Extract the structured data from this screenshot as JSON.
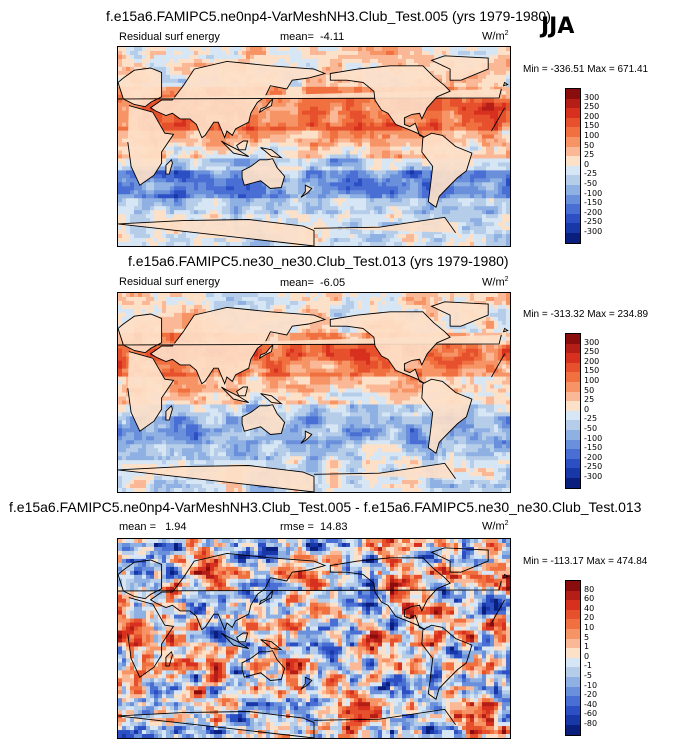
{
  "season": "JJA",
  "panels": [
    {
      "title": "f.e15a6.FAMIPC5.ne0np4-VarMeshNH3.Club_Test.005 (yrs 1979-1980)",
      "variable": "Residual surf energy",
      "stat_label": "mean=",
      "stat_value": "-4.11",
      "units": "W/m",
      "units_sup": "2",
      "minmax": "Min = -336.51 Max = 671.41"
    },
    {
      "title": "f.e15a6.FAMIPC5.ne30_ne30.Club_Test.013 (yrs 1979-1980)",
      "variable": "Residual surf energy",
      "stat_label": "mean=",
      "stat_value": "-6.05",
      "units": "W/m",
      "units_sup": "2",
      "minmax": "Min = -313.32 Max = 234.89"
    },
    {
      "title": "f.e15a6.FAMIPC5.ne0np4-VarMeshNH3.Club_Test.005 - f.e15a6.FAMIPC5.ne30_ne30.Club_Test.013",
      "variable": "",
      "stat_label": "mean =",
      "stat_value": "1.94",
      "stat2_label": "rmse =",
      "stat2_value": "14.83",
      "units": "W/m",
      "units_sup": "2",
      "minmax": "Min = -113.17 Max = 474.84"
    }
  ],
  "chart_data": [
    {
      "type": "heatmap",
      "title": "f.e15a6.FAMIPC5.ne0np4-VarMeshNH3.Club_Test.005 (yrs 1979-1980)",
      "variable": "Residual surf energy",
      "units": "W/m2",
      "mean": -4.11,
      "min": -336.51,
      "max": 671.41,
      "colorbar_levels": [
        "300",
        "250",
        "200",
        "150",
        "100",
        "50",
        "25",
        "0",
        "-25",
        "-50",
        "-100",
        "-150",
        "-200",
        "-250",
        "-300"
      ],
      "colors": [
        "#8a0d0d",
        "#b41e17",
        "#d7301f",
        "#e6502c",
        "#f07040",
        "#f79466",
        "#fbb896",
        "#fde0c8",
        "#d6e6f5",
        "#b5cde9",
        "#8fb0e3",
        "#6a90dc",
        "#4a6fd4",
        "#2d4fc4",
        "#1838a8",
        "#0a1e7e"
      ]
    },
    {
      "type": "heatmap",
      "title": "f.e15a6.FAMIPC5.ne30_ne30.Club_Test.013 (yrs 1979-1980)",
      "variable": "Residual surf energy",
      "units": "W/m2",
      "mean": -6.05,
      "min": -313.32,
      "max": 234.89,
      "colorbar_levels": [
        "300",
        "250",
        "200",
        "150",
        "100",
        "50",
        "25",
        "0",
        "-25",
        "-50",
        "-100",
        "-150",
        "-200",
        "-250",
        "-300"
      ],
      "colors": [
        "#8a0d0d",
        "#b41e17",
        "#d7301f",
        "#e6502c",
        "#f07040",
        "#f79466",
        "#fbb896",
        "#fde0c8",
        "#d6e6f5",
        "#b5cde9",
        "#8fb0e3",
        "#6a90dc",
        "#4a6fd4",
        "#2d4fc4",
        "#1838a8",
        "#0a1e7e"
      ]
    },
    {
      "type": "heatmap",
      "title": "f.e15a6.FAMIPC5.ne0np4-VarMeshNH3.Club_Test.005 - f.e15a6.FAMIPC5.ne30_ne30.Club_Test.013",
      "variable": "",
      "units": "W/m2",
      "mean": 1.94,
      "rmse": 14.83,
      "min": -113.17,
      "max": 474.84,
      "colorbar_levels": [
        "80",
        "60",
        "40",
        "20",
        "10",
        "5",
        "1",
        "0",
        "-1",
        "-5",
        "-10",
        "-20",
        "-40",
        "-60",
        "-80"
      ],
      "colors": [
        "#8a0d0d",
        "#b41e17",
        "#d7301f",
        "#e6502c",
        "#f07040",
        "#f79466",
        "#fbb896",
        "#fde0c8",
        "#d6e6f5",
        "#b5cde9",
        "#8fb0e3",
        "#6a90dc",
        "#4a6fd4",
        "#2d4fc4",
        "#1838a8",
        "#0a1e7e"
      ]
    }
  ]
}
